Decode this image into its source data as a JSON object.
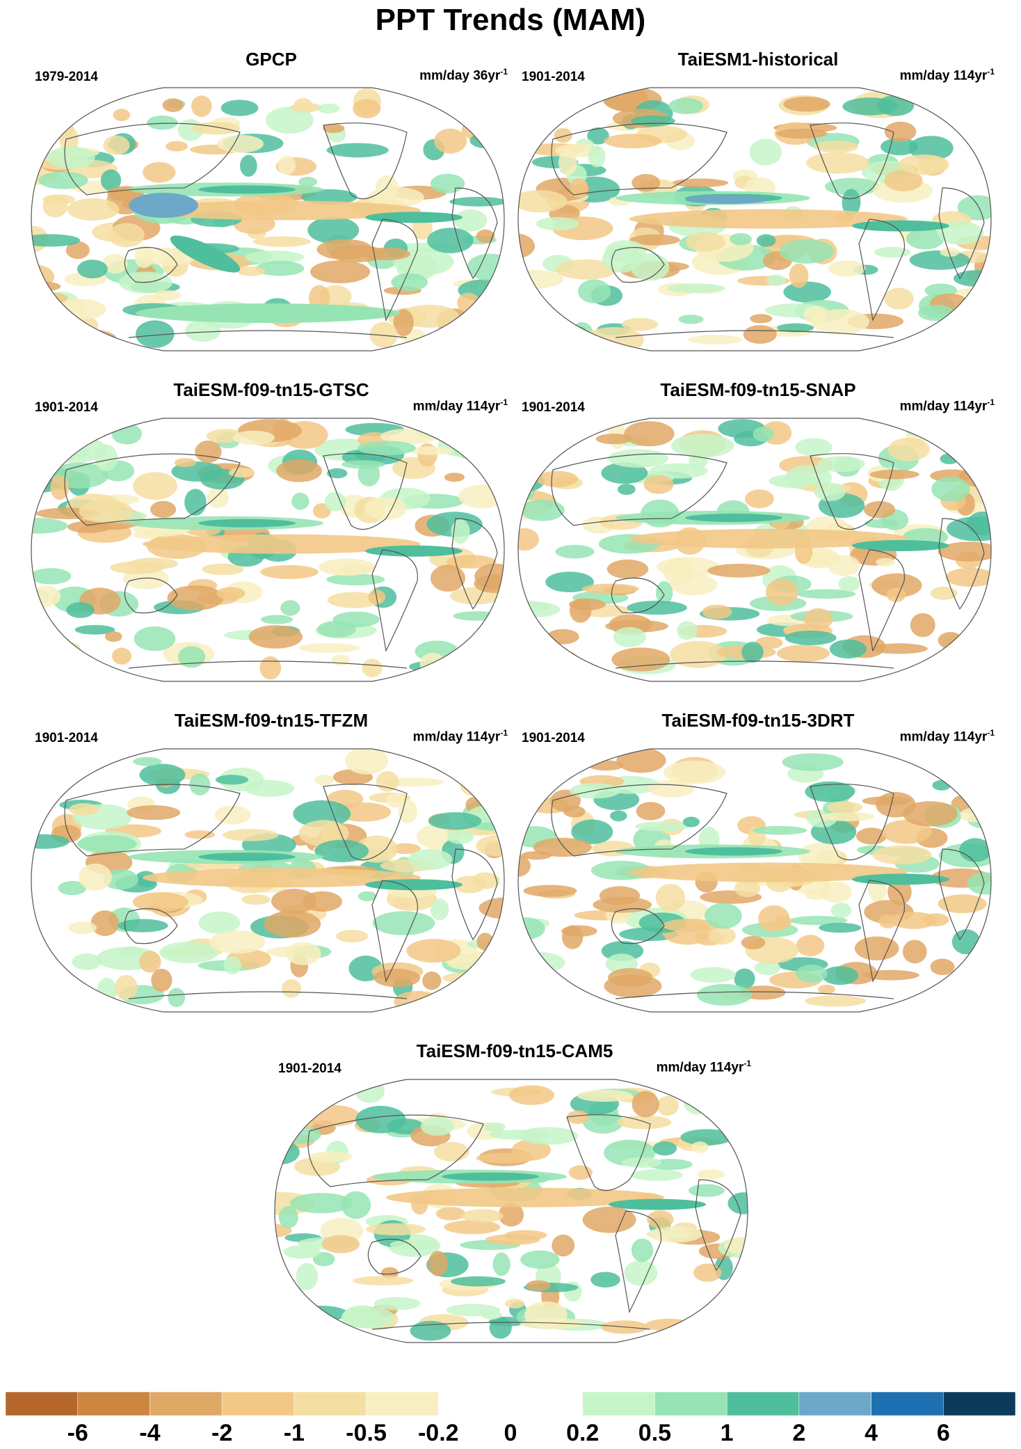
{
  "figure": {
    "title": "PPT Trends (MAM)"
  },
  "panels": [
    {
      "title": "GPCP",
      "period": "1979-2014",
      "units": "mm/day 36yr",
      "units_exp": "-1"
    },
    {
      "title": "TaiESM1-historical",
      "period": "1901-2014",
      "units": "mm/day 114yr",
      "units_exp": "-1"
    },
    {
      "title": "TaiESM-f09-tn15-GTSC",
      "period": "1901-2014",
      "units": "mm/day 114yr",
      "units_exp": "-1"
    },
    {
      "title": "TaiESM-f09-tn15-SNAP",
      "period": "1901-2014",
      "units": "mm/day 114yr",
      "units_exp": "-1"
    },
    {
      "title": "TaiESM-f09-tn15-TFZM",
      "period": "1901-2014",
      "units": "mm/day 114yr",
      "units_exp": "-1"
    },
    {
      "title": "TaiESM-f09-tn15-3DRT",
      "period": "1901-2014",
      "units": "mm/day 114yr",
      "units_exp": "-1"
    },
    {
      "title": "TaiESM-f09-tn15-CAM5",
      "period": "1901-2014",
      "units": "mm/day 114yr",
      "units_exp": "-1"
    }
  ],
  "colorbar": {
    "colors": [
      "#b5662a",
      "#cc8642",
      "#e0a866",
      "#f2c886",
      "#f4dea2",
      "#f8efc0",
      "#ffffff",
      "#ffffff",
      "#c6f5c8",
      "#96e4b4",
      "#4fbe9c",
      "#6ea8c8",
      "#1f70b0",
      "#0c3a5a"
    ],
    "labels": [
      "-6",
      "-4",
      "-2",
      "-1",
      "-0.5",
      "-0.2",
      "0",
      "0.2",
      "0.5",
      "1",
      "2",
      "4",
      "6"
    ]
  }
}
